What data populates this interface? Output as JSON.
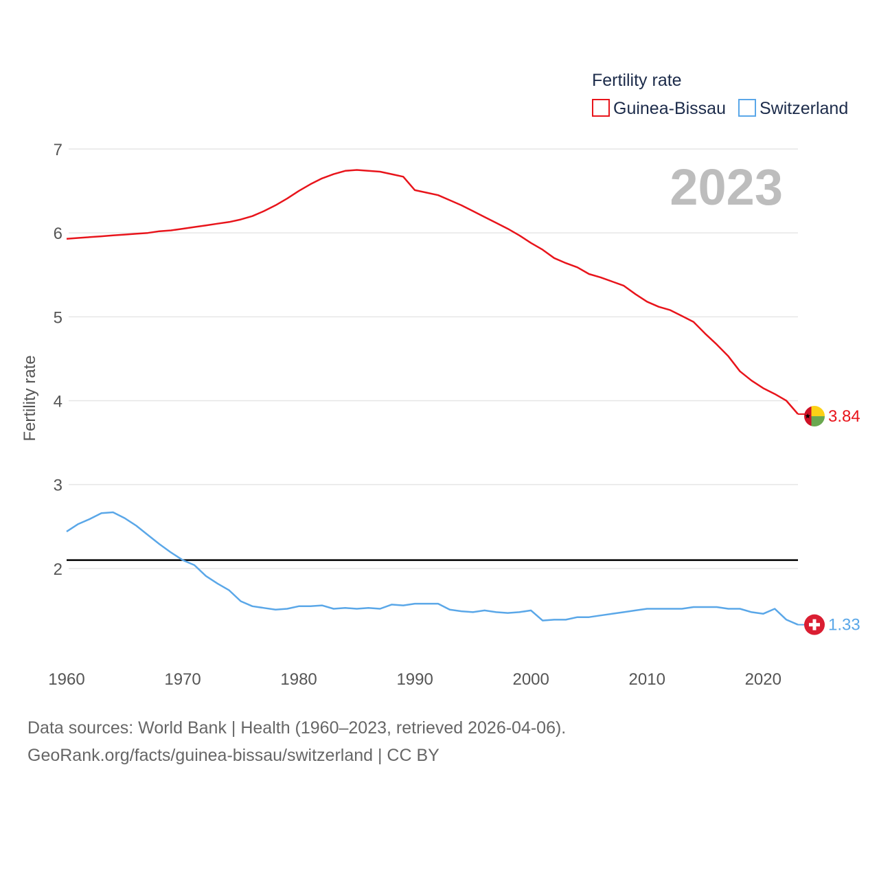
{
  "chart_data": {
    "type": "line",
    "title": "",
    "xlabel": "",
    "ylabel": "Fertility rate",
    "xlim": [
      1960,
      2023
    ],
    "ylim": [
      1,
      7
    ],
    "year_label": "2023",
    "x_ticks": [
      1960,
      1970,
      1980,
      1990,
      2000,
      2010,
      2020
    ],
    "x_tick_labels": [
      "1960",
      "1970",
      "1980",
      "1990",
      "2000",
      "2010",
      "2020"
    ],
    "y_ticks": [
      2,
      3,
      4,
      5,
      6,
      7
    ],
    "y_tick_labels": [
      "2",
      "3",
      "4",
      "5",
      "6",
      "7"
    ],
    "reference_line": {
      "y": 2.1,
      "color": "#000000"
    },
    "legend": {
      "title": "Fertility rate",
      "position": "top-right"
    },
    "x": [
      1960,
      1961,
      1962,
      1963,
      1964,
      1965,
      1966,
      1967,
      1968,
      1969,
      1970,
      1971,
      1972,
      1973,
      1974,
      1975,
      1976,
      1977,
      1978,
      1979,
      1980,
      1981,
      1982,
      1983,
      1984,
      1985,
      1986,
      1987,
      1988,
      1989,
      1990,
      1991,
      1992,
      1993,
      1994,
      1995,
      1996,
      1997,
      1998,
      1999,
      2000,
      2001,
      2002,
      2003,
      2004,
      2005,
      2006,
      2007,
      2008,
      2009,
      2010,
      2011,
      2012,
      2013,
      2014,
      2015,
      2016,
      2017,
      2018,
      2019,
      2020,
      2021,
      2022,
      2023
    ],
    "series": [
      {
        "name": "Guinea-Bissau",
        "color": "#e8141b",
        "end_label": "3.84",
        "flag": "guinea-bissau-flag-icon",
        "values": [
          5.93,
          5.94,
          5.95,
          5.96,
          5.97,
          5.98,
          5.99,
          6.0,
          6.02,
          6.03,
          6.05,
          6.07,
          6.09,
          6.11,
          6.13,
          6.16,
          6.2,
          6.26,
          6.33,
          6.41,
          6.5,
          6.58,
          6.65,
          6.7,
          6.74,
          6.75,
          6.74,
          6.73,
          6.7,
          6.67,
          6.51,
          6.48,
          6.45,
          6.39,
          6.33,
          6.26,
          6.19,
          6.12,
          6.05,
          5.97,
          5.88,
          5.8,
          5.7,
          5.64,
          5.59,
          5.51,
          5.47,
          5.42,
          5.37,
          5.27,
          5.18,
          5.12,
          5.08,
          5.01,
          4.94,
          4.8,
          4.67,
          4.53,
          4.35,
          4.24,
          4.15,
          4.08,
          4.0,
          3.84
        ]
      },
      {
        "name": "Switzerland",
        "color": "#5aa7e8",
        "end_label": "1.33",
        "flag": "switzerland-flag-icon",
        "values": [
          2.44,
          2.53,
          2.59,
          2.66,
          2.67,
          2.6,
          2.51,
          2.4,
          2.29,
          2.19,
          2.1,
          2.04,
          1.91,
          1.82,
          1.74,
          1.61,
          1.55,
          1.53,
          1.51,
          1.52,
          1.55,
          1.55,
          1.56,
          1.52,
          1.53,
          1.52,
          1.53,
          1.52,
          1.57,
          1.56,
          1.58,
          1.58,
          1.58,
          1.51,
          1.49,
          1.48,
          1.5,
          1.48,
          1.47,
          1.48,
          1.5,
          1.38,
          1.39,
          1.39,
          1.42,
          1.42,
          1.44,
          1.46,
          1.48,
          1.5,
          1.52,
          1.52,
          1.52,
          1.52,
          1.54,
          1.54,
          1.54,
          1.52,
          1.52,
          1.48,
          1.46,
          1.52,
          1.39,
          1.33
        ]
      }
    ]
  },
  "footer": {
    "source_line": "Data sources: World Bank | Health (1960–2023, retrieved 2026-04-06).",
    "link_line": "GeoRank.org/facts/guinea-bissau/switzerland | CC BY"
  }
}
